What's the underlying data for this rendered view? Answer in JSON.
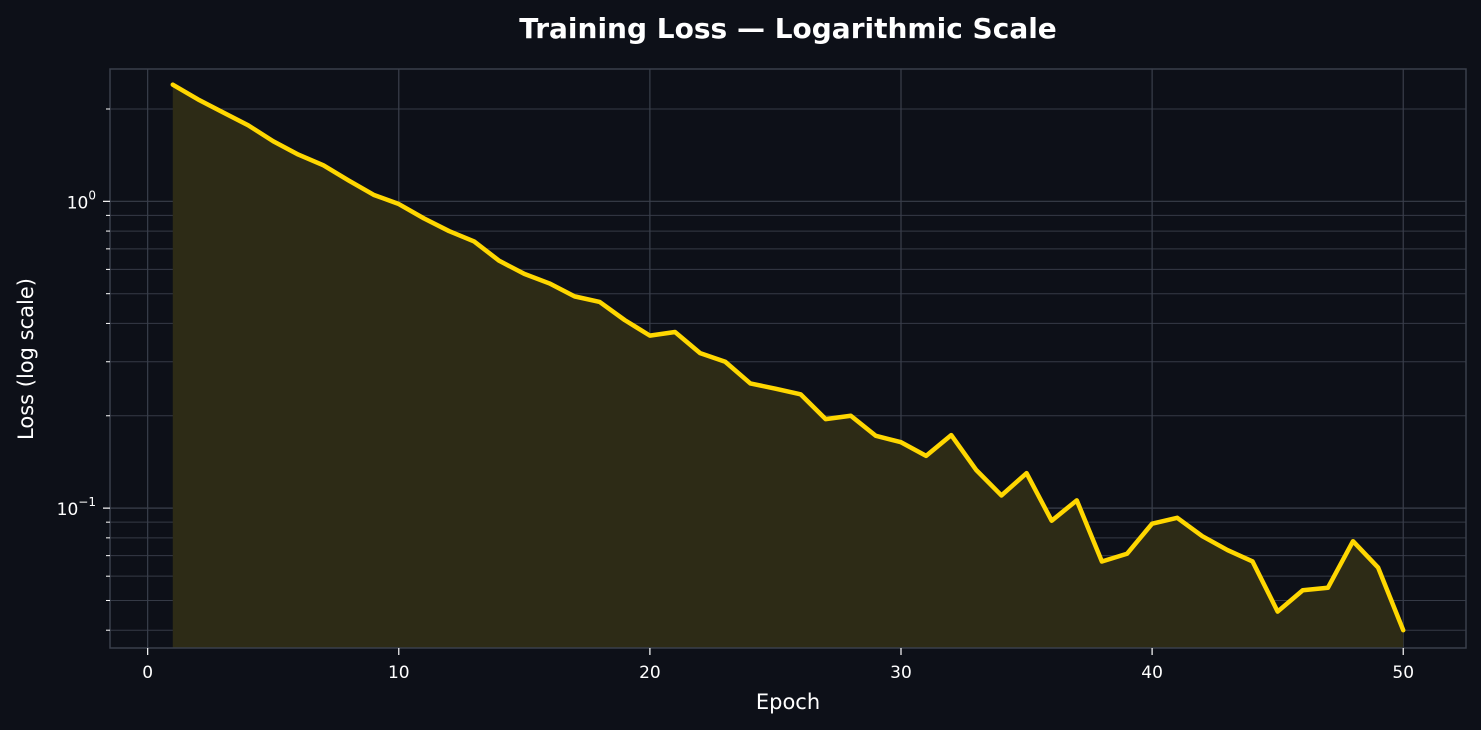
{
  "chart_data": {
    "type": "area",
    "title": "Training Loss — Logarithmic Scale",
    "xlabel": "Epoch",
    "ylabel": "Loss (log scale)",
    "y_scale": "log",
    "xlim": [
      -1.5,
      52.5
    ],
    "ylim": [
      0.035,
      2.7
    ],
    "x_ticks": [
      0,
      10,
      20,
      30,
      40,
      50
    ],
    "y_major_ticks": [
      {
        "value": 1.0,
        "base": "10",
        "exp": "0"
      },
      {
        "value": 0.1,
        "base": "10",
        "exp": "−1"
      }
    ],
    "y_minor_ticks": [
      2,
      0.9,
      0.8,
      0.7,
      0.6,
      0.5,
      0.4,
      0.3,
      0.2,
      0.09,
      0.08,
      0.07,
      0.06,
      0.05,
      0.04
    ],
    "grid": true,
    "legend": "none",
    "colors": {
      "line": "#ffd700",
      "fill": "#2d2b16",
      "background": "#0d1018",
      "grid": "#3a3f4b",
      "spine": "#3a3f4b"
    },
    "x": [
      1,
      2,
      3,
      4,
      5,
      6,
      7,
      8,
      9,
      10,
      11,
      12,
      13,
      14,
      15,
      16,
      17,
      18,
      19,
      20,
      21,
      22,
      23,
      24,
      25,
      26,
      27,
      28,
      29,
      30,
      31,
      32,
      33,
      34,
      35,
      36,
      37,
      38,
      39,
      40,
      41,
      42,
      43,
      44,
      45,
      46,
      47,
      48,
      49,
      50
    ],
    "y": [
      2.4,
      2.15,
      1.95,
      1.77,
      1.57,
      1.42,
      1.31,
      1.17,
      1.05,
      0.98,
      0.88,
      0.8,
      0.74,
      0.64,
      0.58,
      0.54,
      0.49,
      0.47,
      0.41,
      0.365,
      0.375,
      0.32,
      0.3,
      0.255,
      0.245,
      0.235,
      0.195,
      0.2,
      0.172,
      0.164,
      0.148,
      0.173,
      0.133,
      0.11,
      0.13,
      0.091,
      0.106,
      0.067,
      0.071,
      0.089,
      0.093,
      0.081,
      0.073,
      0.067,
      0.046,
      0.054,
      0.055,
      0.078,
      0.064,
      0.04
    ]
  }
}
